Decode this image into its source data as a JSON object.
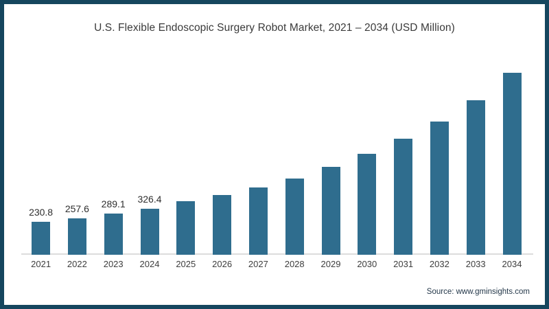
{
  "chart": {
    "title": "U.S. Flexible Endoscopic Surgery Robot Market, 2021 – 2034 (USD Million)",
    "source": "Source: www.gminsights.com"
  },
  "chart_data": {
    "type": "bar",
    "title": "U.S. Flexible Endoscopic Surgery Robot Market, 2021 – 2034 (USD Million)",
    "categories": [
      "2021",
      "2022",
      "2023",
      "2024",
      "2025",
      "2026",
      "2027",
      "2028",
      "2029",
      "2030",
      "2031",
      "2032",
      "2033",
      "2034"
    ],
    "values": [
      230.8,
      257.6,
      289.1,
      326.4,
      376,
      422,
      477,
      540,
      620,
      714,
      818,
      943,
      1090,
      1283
    ],
    "data_labels": [
      "230.8",
      "257.6",
      "289.1",
      "326.4",
      null,
      null,
      null,
      null,
      null,
      null,
      null,
      null,
      null,
      null
    ],
    "xlabel": "",
    "ylabel": "",
    "ylim": [
      0,
      1350
    ],
    "y_axis_hidden": true,
    "grid": false,
    "legend": false,
    "bar_color": "#2f6d8e",
    "axis_line_color": "#dcdcdc",
    "note": "Only 2021-2024 bars carry visible data labels; 2025-2034 values estimated from bar heights"
  }
}
